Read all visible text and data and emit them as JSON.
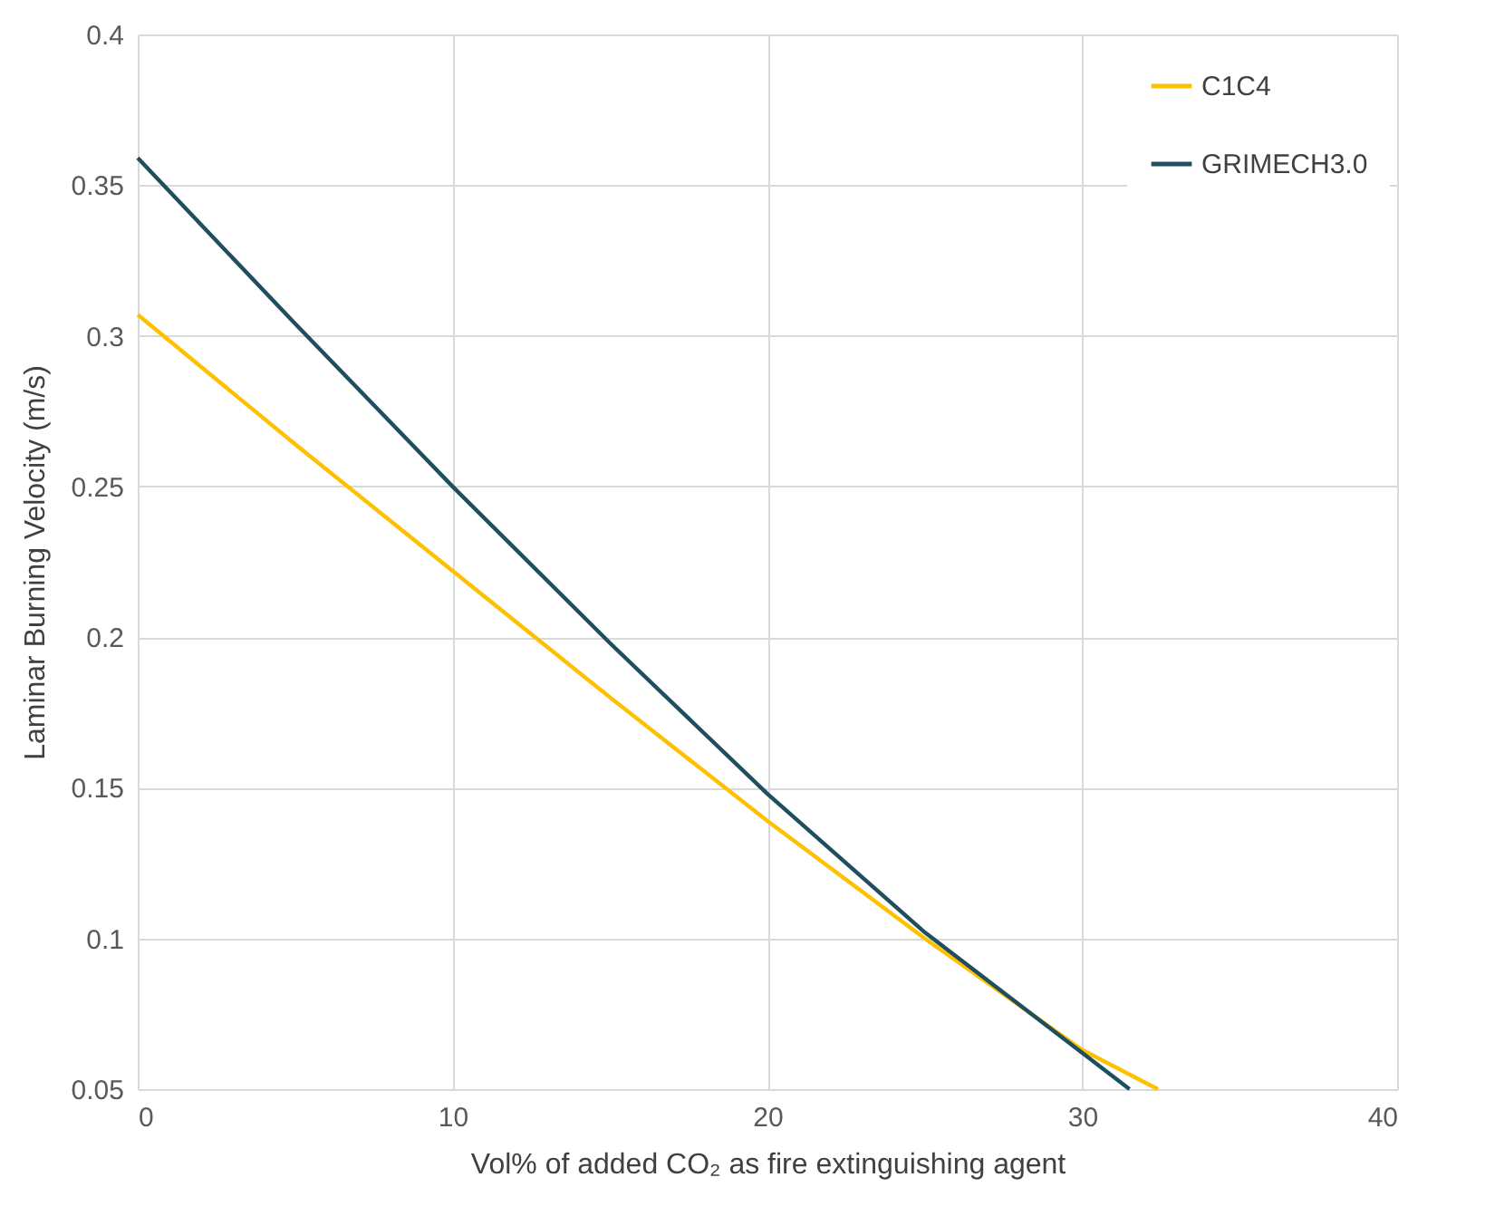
{
  "chart_data": {
    "type": "line",
    "xlabel": "Vol% of added CO₂ as fire extinguishing agent",
    "ylabel": "Laminar Burning Velocity (m/s)",
    "series": [
      {
        "name": "C1C4",
        "color": "#ffc000",
        "x": [
          0,
          5,
          10,
          15,
          20,
          25,
          30,
          32.4
        ],
        "values": [
          0.307,
          0.264,
          0.222,
          0.18,
          0.139,
          0.1,
          0.063,
          0.05
        ]
      },
      {
        "name": "GRIMECH3.0",
        "color": "#1f4e5f",
        "x": [
          0,
          5,
          10,
          15,
          20,
          25,
          30,
          31.5
        ],
        "values": [
          0.359,
          0.304,
          0.25,
          0.198,
          0.148,
          0.102,
          0.062,
          0.05
        ]
      }
    ],
    "xlim": [
      0,
      40
    ],
    "xticks": [
      0,
      10,
      20,
      30,
      40
    ],
    "ylim": [
      0.05,
      0.4
    ],
    "yticks": [
      0.05,
      0.1,
      0.15,
      0.2,
      0.25,
      0.3,
      0.35,
      0.4
    ],
    "grid": true,
    "legend": "top right",
    "marker": "none",
    "line_style": "solid"
  }
}
